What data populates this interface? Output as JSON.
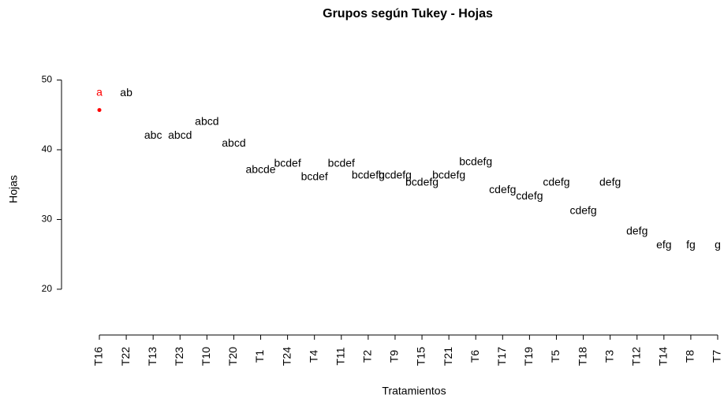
{
  "chart_data": {
    "type": "scatter",
    "title": "Grupos según Tukey - Hojas",
    "x_label": "Tratamientos",
    "y_label": "Hojas",
    "categories": [
      "T16",
      "T22",
      "T13",
      "T23",
      "T10",
      "T20",
      "T1",
      "T24",
      "T4",
      "T11",
      "T2",
      "T9",
      "T15",
      "T21",
      "T6",
      "T17",
      "T19",
      "T5",
      "T18",
      "T3",
      "T12",
      "T14",
      "T8",
      "T7"
    ],
    "values": [
      45.7,
      45.6,
      39.5,
      39.5,
      41.5,
      38.4,
      34.6,
      35.5,
      33.6,
      35.5,
      33.8,
      33.8,
      32.8,
      33.8,
      35.7,
      31.7,
      30.8,
      32.8,
      28.7,
      32.8,
      25.8,
      23.8,
      23.8,
      23.8
    ],
    "groups": [
      "a",
      "ab",
      "abc",
      "abcd",
      "abcd",
      "abcd",
      "abcde",
      "bcdef",
      "bcdef",
      "bcdef",
      "bcdefg",
      "bcdefg",
      "bcdefg",
      "bcdefg",
      "bcdefg",
      "cdefg",
      "cdefg",
      "cdefg",
      "cdefg",
      "defg",
      "defg",
      "efg",
      "fg",
      "g"
    ],
    "label_colors": [
      "red",
      "black",
      "black",
      "black",
      "black",
      "black",
      "black",
      "black",
      "black",
      "black",
      "black",
      "black",
      "black",
      "black",
      "black",
      "black",
      "black",
      "black",
      "black",
      "black",
      "black",
      "black",
      "black",
      "black"
    ],
    "point_colors": [
      "red",
      "white",
      "white",
      "white",
      "white",
      "white",
      "white",
      "white",
      "white",
      "white",
      "white",
      "white",
      "white",
      "white",
      "white",
      "white",
      "white",
      "white",
      "white",
      "white",
      "white",
      "white",
      "white",
      "white"
    ],
    "ylim": [
      14,
      53
    ],
    "yticks": [
      20,
      30,
      40,
      50
    ]
  }
}
